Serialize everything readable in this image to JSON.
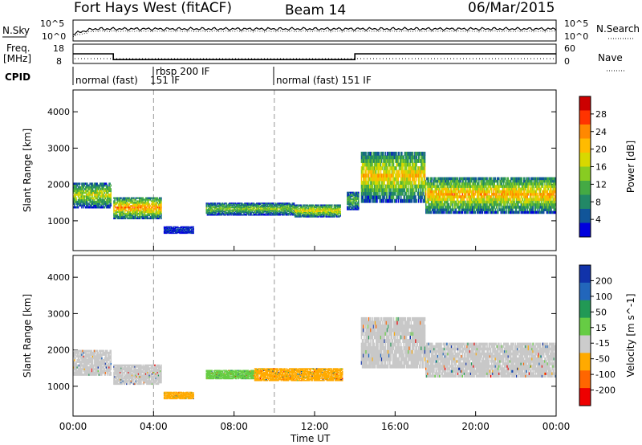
{
  "header": {
    "station": "Fort Hays West (fitACF)",
    "beam": "Beam 14",
    "date": "06/Mar/2015"
  },
  "top_panels": {
    "nsky_label": "N.Sky",
    "nsearch_label": "N.Search",
    "noise_ticks": [
      "10^5",
      "10^0"
    ],
    "freq_label_1": "Freq.",
    "freq_label_2": "[MHz]",
    "freq_ticks": [
      "18",
      "8"
    ],
    "nave_label": "Nave",
    "nave_ticks": [
      "60",
      "0"
    ],
    "cpid_label": "CPID",
    "cpid_segments": [
      {
        "start_hour": 0,
        "text": "normal (fast)"
      },
      {
        "start_hour": 4,
        "text": "151 IF",
        "sub": "rbsp 200 IF"
      },
      {
        "start_hour": 10,
        "text": "normal (fast) 151 IF"
      }
    ],
    "freq_series": [
      {
        "x": 0,
        "y": 13
      },
      {
        "x": 2,
        "y": 13
      },
      {
        "x": 2,
        "y": 10
      },
      {
        "x": 14,
        "y": 10
      },
      {
        "x": 14,
        "y": 13
      },
      {
        "x": 24,
        "y": 13
      }
    ],
    "freq_ylim": [
      8,
      18
    ]
  },
  "chart_data": [
    {
      "type": "heatmap",
      "panel": "power",
      "ylabel": "Slant Range [km]",
      "yticks": [
        1000,
        2000,
        3000,
        4000
      ],
      "ylim": [
        180,
        4600
      ],
      "xlim": [
        0,
        24
      ],
      "colorbar_label": "Power [dB]",
      "colorbar_ticks": [
        "28",
        "24",
        "20",
        "16",
        "12",
        "8",
        "4"
      ],
      "colorbar_colors": [
        "#cc0000",
        "#ff3300",
        "#ff8800",
        "#ffbb00",
        "#d8d800",
        "#88cc22",
        "#44aa44",
        "#228866",
        "#115599",
        "#0000dd"
      ],
      "bands": [
        {
          "x0": 0.0,
          "x1": 1.9,
          "y0": 1350,
          "y1": 2050,
          "level": 0.55
        },
        {
          "x0": 2.0,
          "x1": 4.4,
          "y0": 1050,
          "y1": 1650,
          "level": 0.75
        },
        {
          "x0": 4.5,
          "x1": 6.0,
          "y0": 650,
          "y1": 850,
          "level": 0.1
        },
        {
          "x0": 6.6,
          "x1": 11.0,
          "y0": 1150,
          "y1": 1500,
          "level": 0.45
        },
        {
          "x0": 11.0,
          "x1": 13.3,
          "y0": 1100,
          "y1": 1450,
          "level": 0.6
        },
        {
          "x0": 13.6,
          "x1": 14.2,
          "y0": 1300,
          "y1": 1800,
          "level": 0.4
        },
        {
          "x0": 14.3,
          "x1": 17.5,
          "y0": 1500,
          "y1": 2900,
          "level": 0.65
        },
        {
          "x0": 17.5,
          "x1": 24.0,
          "y0": 1200,
          "y1": 2200,
          "level": 0.7
        }
      ]
    },
    {
      "type": "heatmap",
      "panel": "velocity",
      "ylabel": "Slant Range [km]",
      "yticks": [
        1000,
        2000,
        3000,
        4000
      ],
      "ylim": [
        180,
        4600
      ],
      "xlim": [
        0,
        24
      ],
      "colorbar_label": "Velocity [m s^-1]",
      "colorbar_ticks": [
        "200",
        "100",
        "50",
        "15",
        "-15",
        "-50",
        "-100",
        "-200"
      ],
      "colorbar_colors": [
        "#1133aa",
        "#2266bb",
        "#229955",
        "#66cc44",
        "#cccccc",
        "#ffaa00",
        "#ff6600",
        "#ee0000"
      ],
      "bands": [
        {
          "x0": 0.0,
          "x1": 1.9,
          "y0": 1300,
          "y1": 2000,
          "color": "#c8c8c8"
        },
        {
          "x0": 2.0,
          "x1": 4.4,
          "y0": 1050,
          "y1": 1600,
          "color": "#c8c8c8"
        },
        {
          "x0": 4.5,
          "x1": 6.0,
          "y0": 650,
          "y1": 850,
          "color": "#ffaa00"
        },
        {
          "x0": 6.6,
          "x1": 9.0,
          "y0": 1200,
          "y1": 1450,
          "color": "#66cc44"
        },
        {
          "x0": 9.0,
          "x1": 13.4,
          "y0": 1150,
          "y1": 1500,
          "color": "#ffaa00"
        },
        {
          "x0": 14.3,
          "x1": 17.5,
          "y0": 1500,
          "y1": 2900,
          "color": "#c8c8c8"
        },
        {
          "x0": 17.5,
          "x1": 24.0,
          "y0": 1250,
          "y1": 2200,
          "color": "#c8c8c8"
        }
      ]
    }
  ],
  "xaxis": {
    "label": "Time UT",
    "ticks": [
      "00:00",
      "04:00",
      "08:00",
      "12:00",
      "16:00",
      "20:00",
      "00:00"
    ]
  }
}
